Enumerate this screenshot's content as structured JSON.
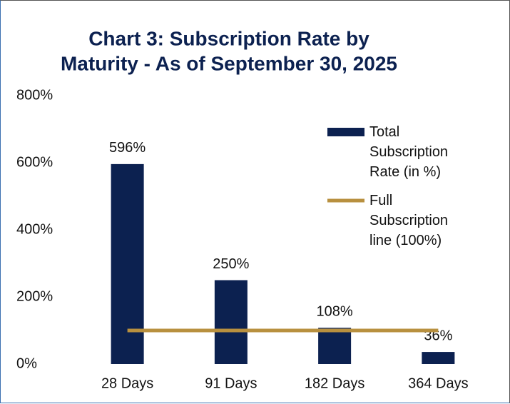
{
  "chart_data": {
    "type": "bar",
    "title": [
      "Chart 3: Subscription Rate by",
      "Maturity  - As of September 30, 2025"
    ],
    "categories": [
      "28 Days",
      "91 Days",
      "182 Days",
      "364 Days"
    ],
    "series": [
      {
        "name": "Total Subscription Rate (in %)",
        "color": "#0c2150",
        "values": [
          596,
          250,
          108,
          36
        ],
        "value_labels": [
          "596%",
          "250%",
          "108%",
          "36%"
        ]
      },
      {
        "name": "Full Subscription line (100%)",
        "type": "line",
        "color": "#b8903f",
        "values": [
          100,
          100,
          100,
          100
        ]
      }
    ],
    "ylim": [
      0,
      800
    ],
    "yticks": [
      {
        "value": 0,
        "label": "0%"
      },
      {
        "value": 200,
        "label": "200%"
      },
      {
        "value": 400,
        "label": "400%"
      },
      {
        "value": 600,
        "label": "600%"
      },
      {
        "value": 800,
        "label": "800%"
      }
    ],
    "grid": false,
    "legend": "upper right"
  }
}
